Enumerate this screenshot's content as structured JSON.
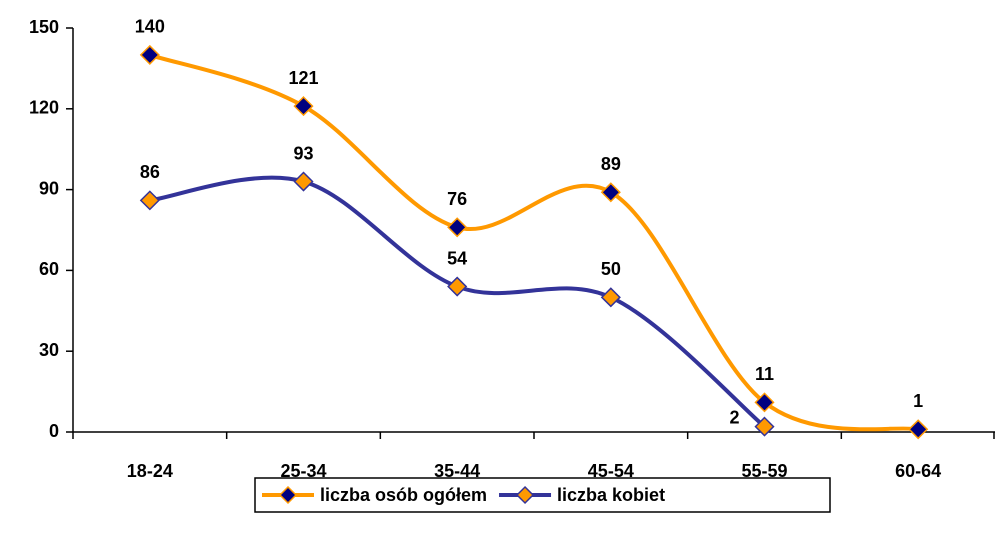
{
  "chart_data": {
    "type": "line",
    "categories": [
      "18-24",
      "25-34",
      "35-44",
      "45-54",
      "55-59",
      "60-64"
    ],
    "series": [
      {
        "name": "liczba osób ogółem",
        "color": "#ff9900",
        "marker_color": "#000080",
        "marker_edge": "#ff9900",
        "values": [
          140,
          121,
          76,
          89,
          11,
          1
        ]
      },
      {
        "name": "liczba kobiet",
        "color": "#333399",
        "marker_color": "#ff9900",
        "marker_edge": "#333399",
        "values": [
          86,
          93,
          54,
          50,
          2,
          null
        ]
      }
    ],
    "ylim": [
      0,
      150
    ],
    "yticks": [
      0,
      30,
      60,
      90,
      120,
      150
    ],
    "smooth": true,
    "legend": "bottom"
  }
}
